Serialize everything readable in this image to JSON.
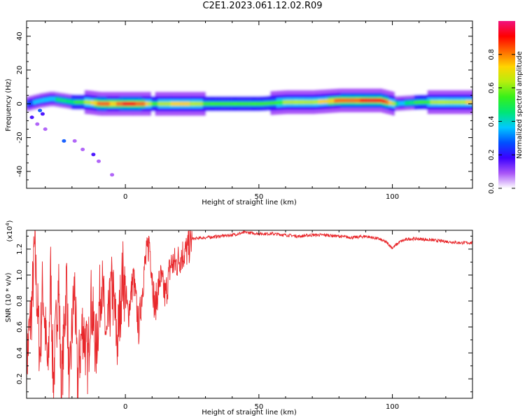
{
  "title": "C2E1.2023.061.12.02.R09",
  "colors": {
    "snr_line": "#e8262a",
    "colorbar": [
      "#ffffff",
      "#a855f7",
      "#3b00ff",
      "#0050ff",
      "#00c8ff",
      "#00e676",
      "#36f01a",
      "#b6ee0e",
      "#ffd400",
      "#ff6a00",
      "#ff0000",
      "#f0127e"
    ]
  },
  "chart_data": [
    {
      "type": "heatmap",
      "xlabel": "Height of straight line (km)",
      "ylabel": "Frequency (Hz)",
      "xlim": [
        -37,
        130
      ],
      "ylim": [
        -50,
        49
      ],
      "xticks": [
        0,
        50,
        100
      ],
      "xtick_labels": [
        "0",
        "50",
        "100"
      ],
      "yticks": [
        -40,
        -20,
        0,
        20,
        40
      ],
      "ytick_labels": [
        "-40",
        "-20",
        "0",
        "20",
        "40"
      ],
      "colorbar": {
        "label": "Normalized spectral amplitude",
        "range": [
          0,
          1
        ],
        "ticks": [
          0.0,
          0.2,
          0.4,
          0.6,
          0.8
        ],
        "tick_labels": [
          "0.0",
          "0.2",
          "0.4",
          "0.6",
          "0.8"
        ]
      },
      "peak_frequency": [
        [
          -37,
          0
        ],
        [
          -32,
          2
        ],
        [
          -28,
          3
        ],
        [
          -24,
          2
        ],
        [
          -20,
          1
        ],
        [
          -15,
          1
        ],
        [
          -10,
          0
        ],
        [
          -5,
          0
        ],
        [
          0,
          0
        ],
        [
          5,
          0
        ],
        [
          10,
          0
        ],
        [
          20,
          0
        ],
        [
          30,
          0
        ],
        [
          40,
          0
        ],
        [
          50,
          0
        ],
        [
          60,
          1
        ],
        [
          70,
          1
        ],
        [
          80,
          2
        ],
        [
          90,
          2
        ],
        [
          95,
          2
        ],
        [
          100,
          0
        ],
        [
          110,
          1
        ],
        [
          120,
          1
        ],
        [
          130,
          1
        ]
      ],
      "band_amplitude": [
        [
          -37,
          0.3
        ],
        [
          -32,
          0.35
        ],
        [
          -28,
          0.4
        ],
        [
          -24,
          0.45
        ],
        [
          -20,
          0.5
        ],
        [
          -15,
          0.6
        ],
        [
          -10,
          0.85
        ],
        [
          -5,
          0.75
        ],
        [
          0,
          0.9
        ],
        [
          5,
          0.85
        ],
        [
          10,
          0.55
        ],
        [
          20,
          0.75
        ],
        [
          30,
          0.55
        ],
        [
          40,
          0.5
        ],
        [
          50,
          0.55
        ],
        [
          60,
          0.6
        ],
        [
          70,
          0.65
        ],
        [
          80,
          0.82
        ],
        [
          90,
          0.88
        ],
        [
          97,
          0.9
        ],
        [
          102,
          0.35
        ],
        [
          110,
          0.55
        ],
        [
          120,
          0.65
        ],
        [
          130,
          0.7
        ]
      ],
      "scatter_points": [
        [
          -32,
          -4,
          0.25
        ],
        [
          -31,
          -6,
          0.2
        ],
        [
          -35,
          -8,
          0.15
        ],
        [
          -33,
          -12,
          0.08
        ],
        [
          -30,
          -15,
          0.05
        ],
        [
          -23,
          -22,
          0.25
        ],
        [
          -19,
          -22,
          0.08
        ],
        [
          -16,
          -27,
          0.06
        ],
        [
          -12,
          -30,
          0.15
        ],
        [
          -10,
          -34,
          0.1
        ],
        [
          -5,
          -42,
          0.06
        ]
      ]
    },
    {
      "type": "line",
      "xlabel": "Height of straight line (km)",
      "ylabel": "SNR (10 * v/v)",
      "multiplier_label": "(x10",
      "multiplier_exponent": "4",
      "xlim": [
        -37,
        130
      ],
      "ylim": [
        0.05,
        1.345
      ],
      "xticks": [
        0,
        50,
        100
      ],
      "xtick_labels": [
        "0",
        "50",
        "100"
      ],
      "yticks": [
        0.2,
        0.4,
        0.6,
        0.8,
        1.0,
        1.2
      ],
      "ytick_labels": [
        "0.2",
        "0.4",
        "0.6",
        "0.8",
        "1.0",
        "1.2"
      ],
      "series": [
        {
          "values": [
            [
              -37,
              0.35
            ],
            [
              -35,
              0.8
            ],
            [
              -34,
              1.23
            ],
            [
              -32,
              0.4
            ],
            [
              -31,
              0.95
            ],
            [
              -29,
              0.25
            ],
            [
              -28,
              1.05
            ],
            [
              -27,
              0.2
            ],
            [
              -25,
              1.0
            ],
            [
              -24,
              0.1
            ],
            [
              -22,
              1.03
            ],
            [
              -21,
              0.07
            ],
            [
              -20,
              0.6
            ],
            [
              -19,
              0.95
            ],
            [
              -18,
              0.2
            ],
            [
              -16,
              0.65
            ],
            [
              -14,
              0.35
            ],
            [
              -13,
              0.85
            ],
            [
              -11,
              0.45
            ],
            [
              -9,
              1.0
            ],
            [
              -7,
              0.5
            ],
            [
              -5,
              0.95
            ],
            [
              -3,
              0.5
            ],
            [
              -1,
              1.05
            ],
            [
              1,
              0.7
            ],
            [
              3,
              1.0
            ],
            [
              5,
              0.6
            ],
            [
              7,
              1.05
            ],
            [
              9,
              1.28
            ],
            [
              11,
              0.75
            ],
            [
              13,
              1.0
            ],
            [
              15,
              0.85
            ],
            [
              17,
              1.1
            ],
            [
              19,
              1.1
            ],
            [
              21,
              1.17
            ],
            [
              23,
              1.2
            ],
            [
              25,
              1.28
            ],
            [
              30,
              1.29
            ],
            [
              35,
              1.3
            ],
            [
              40,
              1.31
            ],
            [
              45,
              1.33
            ],
            [
              50,
              1.32
            ],
            [
              55,
              1.32
            ],
            [
              60,
              1.31
            ],
            [
              65,
              1.3
            ],
            [
              70,
              1.31
            ],
            [
              75,
              1.31
            ],
            [
              80,
              1.3
            ],
            [
              85,
              1.29
            ],
            [
              90,
              1.3
            ],
            [
              95,
              1.28
            ],
            [
              98,
              1.25
            ],
            [
              100,
              1.21
            ],
            [
              103,
              1.26
            ],
            [
              106,
              1.28
            ],
            [
              110,
              1.28
            ],
            [
              115,
              1.27
            ],
            [
              120,
              1.26
            ],
            [
              125,
              1.25
            ],
            [
              130,
              1.25
            ]
          ]
        }
      ]
    }
  ]
}
